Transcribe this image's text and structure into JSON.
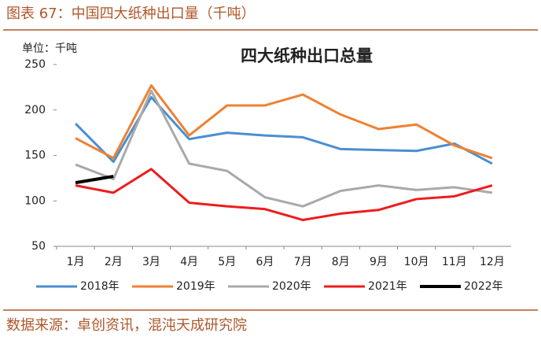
{
  "header": {
    "title": "图表 67：中国四大纸种出口量（千吨）"
  },
  "chart_data": {
    "type": "line",
    "title": "四大纸种出口总量",
    "unit_label": "单位：千吨",
    "categories": [
      "1月",
      "2月",
      "3月",
      "4月",
      "5月",
      "6月",
      "7月",
      "8月",
      "9月",
      "10月",
      "11月",
      "12月"
    ],
    "series": [
      {
        "name": "2018年",
        "color": "#4a8fd0",
        "values": [
          185,
          143,
          214,
          168,
          175,
          172,
          170,
          157,
          156,
          155,
          163,
          141
        ]
      },
      {
        "name": "2019年",
        "color": "#ee8133",
        "values": [
          169,
          147,
          227,
          172,
          205,
          205,
          217,
          195,
          179,
          184,
          161,
          147
        ]
      },
      {
        "name": "2020年",
        "color": "#a9a9a9",
        "values": [
          140,
          124,
          221,
          141,
          133,
          104,
          94,
          111,
          117,
          112,
          115,
          109
        ]
      },
      {
        "name": "2021年",
        "color": "#ee1c1c",
        "values": [
          117,
          109,
          135,
          98,
          94,
          91,
          79,
          86,
          90,
          102,
          105,
          117
        ]
      },
      {
        "name": "2022年",
        "color": "#000000",
        "values": [
          120,
          127,
          null,
          null,
          null,
          null,
          null,
          null,
          null,
          null,
          null,
          null
        ]
      }
    ],
    "ylim": [
      50,
      250
    ],
    "yticks": [
      50,
      100,
      150,
      200,
      250
    ]
  },
  "footer": {
    "source": "数据来源：卓创资讯，混沌天成研究院"
  }
}
